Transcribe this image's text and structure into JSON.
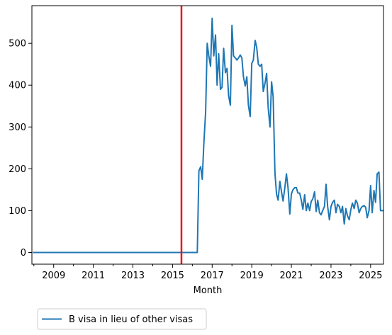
{
  "chart_data": {
    "type": "line",
    "title": "",
    "xlabel": "Month",
    "ylabel": "",
    "xlim": [
      2007.9,
      2025.65
    ],
    "ylim": [
      -28,
      590
    ],
    "x_ticks": [
      2009,
      2011,
      2013,
      2015,
      2017,
      2019,
      2021,
      2023,
      2025
    ],
    "y_ticks": [
      0,
      100,
      200,
      300,
      400,
      500
    ],
    "grid": false,
    "legend_position": "below-left",
    "vline": {
      "x": 2015.45,
      "color": "#ee1111"
    },
    "series": [
      {
        "name": "B visa in lieu of other visas",
        "color": "#1f77b4",
        "points": [
          [
            2007.95,
            0
          ],
          [
            2016.25,
            0
          ],
          [
            2016.33,
            195
          ],
          [
            2016.42,
            205
          ],
          [
            2016.5,
            175
          ],
          [
            2016.58,
            260
          ],
          [
            2016.67,
            335
          ],
          [
            2016.75,
            500
          ],
          [
            2016.83,
            470
          ],
          [
            2016.92,
            445
          ],
          [
            2017.0,
            560
          ],
          [
            2017.08,
            470
          ],
          [
            2017.17,
            520
          ],
          [
            2017.25,
            400
          ],
          [
            2017.33,
            475
          ],
          [
            2017.42,
            390
          ],
          [
            2017.5,
            395
          ],
          [
            2017.58,
            488
          ],
          [
            2017.67,
            430
          ],
          [
            2017.75,
            440
          ],
          [
            2017.83,
            375
          ],
          [
            2017.92,
            352
          ],
          [
            2018.0,
            543
          ],
          [
            2018.08,
            470
          ],
          [
            2018.17,
            465
          ],
          [
            2018.25,
            460
          ],
          [
            2018.33,
            465
          ],
          [
            2018.42,
            472
          ],
          [
            2018.5,
            465
          ],
          [
            2018.58,
            420
          ],
          [
            2018.67,
            398
          ],
          [
            2018.75,
            420
          ],
          [
            2018.83,
            352
          ],
          [
            2018.92,
            325
          ],
          [
            2019.0,
            452
          ],
          [
            2019.08,
            460
          ],
          [
            2019.17,
            507
          ],
          [
            2019.25,
            490
          ],
          [
            2019.33,
            450
          ],
          [
            2019.42,
            445
          ],
          [
            2019.5,
            450
          ],
          [
            2019.58,
            385
          ],
          [
            2019.67,
            405
          ],
          [
            2019.75,
            428
          ],
          [
            2019.83,
            345
          ],
          [
            2019.92,
            300
          ],
          [
            2020.0,
            408
          ],
          [
            2020.08,
            372
          ],
          [
            2020.17,
            190
          ],
          [
            2020.25,
            140
          ],
          [
            2020.33,
            125
          ],
          [
            2020.42,
            170
          ],
          [
            2020.5,
            145
          ],
          [
            2020.58,
            123
          ],
          [
            2020.67,
            155
          ],
          [
            2020.75,
            188
          ],
          [
            2020.83,
            155
          ],
          [
            2020.92,
            92
          ],
          [
            2021.0,
            140
          ],
          [
            2021.08,
            150
          ],
          [
            2021.17,
            155
          ],
          [
            2021.25,
            155
          ],
          [
            2021.33,
            142
          ],
          [
            2021.42,
            142
          ],
          [
            2021.5,
            125
          ],
          [
            2021.58,
            103
          ],
          [
            2021.67,
            138
          ],
          [
            2021.75,
            100
          ],
          [
            2021.83,
            118
          ],
          [
            2021.92,
            100
          ],
          [
            2022.0,
            122
          ],
          [
            2022.08,
            128
          ],
          [
            2022.17,
            145
          ],
          [
            2022.25,
            98
          ],
          [
            2022.33,
            125
          ],
          [
            2022.42,
            95
          ],
          [
            2022.5,
            90
          ],
          [
            2022.58,
            100
          ],
          [
            2022.67,
            110
          ],
          [
            2022.75,
            163
          ],
          [
            2022.83,
            110
          ],
          [
            2022.92,
            78
          ],
          [
            2023.0,
            110
          ],
          [
            2023.08,
            120
          ],
          [
            2023.17,
            125
          ],
          [
            2023.25,
            95
          ],
          [
            2023.33,
            115
          ],
          [
            2023.42,
            110
          ],
          [
            2023.5,
            95
          ],
          [
            2023.58,
            110
          ],
          [
            2023.67,
            68
          ],
          [
            2023.75,
            105
          ],
          [
            2023.83,
            88
          ],
          [
            2023.92,
            78
          ],
          [
            2024.0,
            102
          ],
          [
            2024.08,
            118
          ],
          [
            2024.17,
            105
          ],
          [
            2024.25,
            125
          ],
          [
            2024.33,
            118
          ],
          [
            2024.42,
            95
          ],
          [
            2024.5,
            105
          ],
          [
            2024.58,
            110
          ],
          [
            2024.67,
            112
          ],
          [
            2024.75,
            108
          ],
          [
            2024.83,
            83
          ],
          [
            2024.92,
            100
          ],
          [
            2025.0,
            160
          ],
          [
            2025.08,
            95
          ],
          [
            2025.17,
            148
          ],
          [
            2025.25,
            120
          ],
          [
            2025.33,
            188
          ],
          [
            2025.42,
            192
          ],
          [
            2025.5,
            100
          ],
          [
            2025.58,
            100
          ],
          [
            2025.65,
            100
          ]
        ]
      }
    ]
  }
}
